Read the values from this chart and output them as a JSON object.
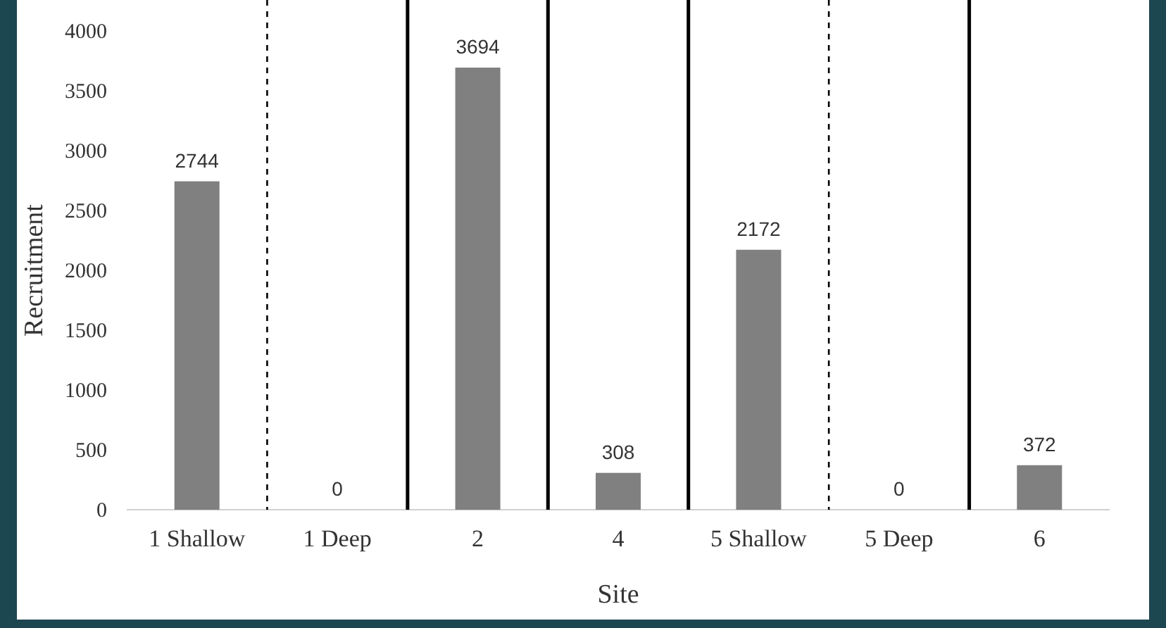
{
  "chart_data": {
    "type": "bar",
    "xlabel": "Site",
    "ylabel": "Recruitment",
    "categories": [
      "1 Shallow",
      "1 Deep",
      "2",
      "4",
      "5 Shallow",
      "5 Deep",
      "6"
    ],
    "values": [
      2744,
      0,
      3694,
      308,
      2172,
      0,
      372
    ],
    "color": "#808080",
    "data_labels": true,
    "ylim": [
      0,
      4000
    ],
    "yticks": [
      0,
      500,
      1000,
      1500,
      2000,
      2500,
      3000,
      3500,
      4000
    ],
    "grid": false
  }
}
